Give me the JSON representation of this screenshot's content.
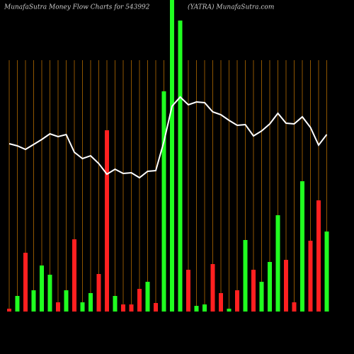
{
  "chart_data": {
    "type": "bar",
    "title": "MunafaSutra  Money Flow  Charts for 543992",
    "subtitle": "(YATRA) MunafaSutra.com",
    "categories": [
      null,
      null,
      null,
      null,
      null,
      null,
      null,
      null,
      null,
      null,
      null,
      null,
      null,
      null,
      null,
      null,
      null,
      null,
      null,
      null,
      null,
      null,
      null,
      null,
      null,
      null,
      null,
      null,
      null,
      null,
      null,
      null,
      null,
      null,
      null,
      null,
      null,
      null,
      null,
      null
    ],
    "ylim": [
      0,
      440
    ],
    "grid": true,
    "grid_color": "#b36b00",
    "background": "#000000",
    "series": [
      {
        "type": "bar",
        "values": [
          4,
          22,
          83,
          30,
          65,
          52,
          13,
          30,
          102,
          13,
          26,
          53,
          256,
          22,
          10,
          10,
          32,
          42,
          12,
          311,
          440,
          411,
          59,
          8,
          10,
          67,
          26,
          4,
          30,
          101,
          59,
          42,
          70,
          136,
          73,
          13,
          184,
          100,
          157,
          113
        ],
        "colors": [
          "#ff2020",
          "#20ff20",
          "#ff2020",
          "#20ff20",
          "#20ff20",
          "#20ff20",
          "#ff2020",
          "#20ff20",
          "#ff2020",
          "#20ff20",
          "#20ff20",
          "#ff2020",
          "#ff2020",
          "#20ff20",
          "#ff2020",
          "#ff2020",
          "#ff2020",
          "#20ff20",
          "#ff2020",
          "#20ff20",
          "#20ff20",
          "#20ff20",
          "#ff2020",
          "#20ff20",
          "#20ff20",
          "#ff2020",
          "#ff2020",
          "#20ff20",
          "#ff2020",
          "#20ff20",
          "#ff2020",
          "#20ff20",
          "#20ff20",
          "#20ff20",
          "#ff2020",
          "#ff2020",
          "#20ff20",
          "#ff2020",
          "#ff2020",
          "#20ff20"
        ]
      },
      {
        "type": "line",
        "color": "#ffffff",
        "values": [
          237,
          234,
          229,
          236,
          243,
          251,
          247,
          250,
          225,
          216,
          220,
          209,
          194,
          201,
          195,
          196,
          189,
          198,
          199,
          240,
          290,
          303,
          292,
          296,
          295,
          282,
          278,
          270,
          263,
          264,
          248,
          255,
          265,
          280,
          266,
          265,
          275,
          260,
          235,
          250
        ]
      }
    ]
  }
}
